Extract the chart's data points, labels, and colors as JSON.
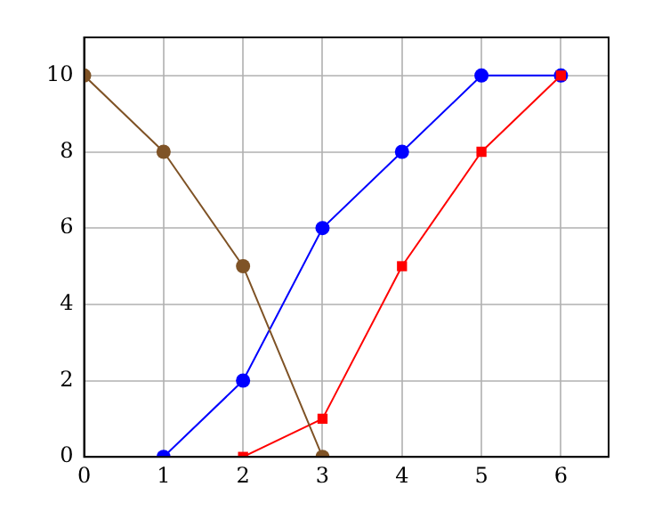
{
  "chart_data": {
    "type": "line",
    "xlim": [
      0,
      6.6
    ],
    "ylim": [
      0,
      11
    ],
    "xticks": [
      0,
      1,
      2,
      3,
      4,
      5,
      6
    ],
    "yticks": [
      0,
      2,
      4,
      6,
      8,
      10
    ],
    "grid": true,
    "legend": false,
    "series": [
      {
        "color": "#0000ff",
        "marker": "circle",
        "x": [
          1,
          2,
          3,
          4,
          5,
          6
        ],
        "values": [
          0,
          2,
          6,
          8,
          10,
          10
        ]
      },
      {
        "color": "#ff0000",
        "marker": "square",
        "x": [
          2,
          3,
          4,
          5,
          6
        ],
        "values": [
          0,
          1,
          5,
          8,
          10
        ]
      },
      {
        "color": "#7f5326",
        "marker": "circle",
        "x": [
          0,
          1,
          2,
          3
        ],
        "values": [
          10,
          8,
          5,
          0
        ]
      }
    ]
  }
}
